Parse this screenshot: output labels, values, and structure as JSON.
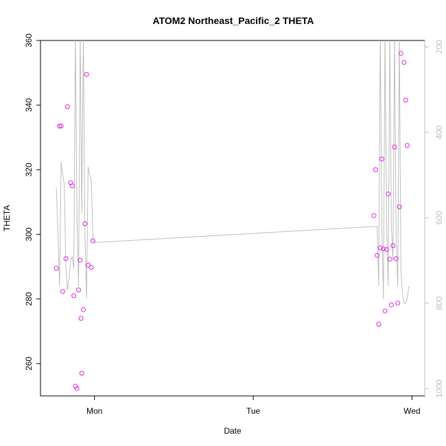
{
  "chart_data": {
    "type": "scatter",
    "title": "ATOM2 Northeast_Pacific_2 THETA",
    "xlabel": "Date",
    "ylabel": "THETA",
    "x_tick_labels": [
      "Mon",
      "Tue",
      "Wed"
    ],
    "x_ticks": [
      1.0,
      2.0,
      3.0
    ],
    "xlim": [
      0.66,
      3.08
    ],
    "ylim": [
      250,
      360
    ],
    "y_ticks": [
      260,
      280,
      300,
      320,
      340,
      360
    ],
    "right_axis": {
      "ylim": [
        1017,
        185
      ],
      "ticks": [
        200,
        400,
        600,
        800,
        1000
      ],
      "color": "#bdbdbd"
    },
    "series": [
      {
        "type": "scatter",
        "color": "#e020e0",
        "points": [
          [
            0.76,
            289.5
          ],
          [
            0.78,
            333.5
          ],
          [
            0.79,
            333.5
          ],
          [
            0.8,
            282.3
          ],
          [
            0.82,
            292.5
          ],
          [
            0.83,
            339.5
          ],
          [
            0.85,
            316.0
          ],
          [
            0.86,
            315.0
          ],
          [
            0.87,
            281.0
          ],
          [
            0.88,
            253.0
          ],
          [
            0.89,
            252.3
          ],
          [
            0.9,
            282.8
          ],
          [
            0.91,
            292.0
          ],
          [
            0.915,
            274.0
          ],
          [
            0.92,
            257.0
          ],
          [
            0.93,
            276.7
          ],
          [
            0.94,
            303.3
          ],
          [
            0.95,
            349.5
          ],
          [
            0.96,
            290.5
          ],
          [
            0.98,
            289.8
          ],
          [
            0.99,
            298.0
          ],
          [
            2.76,
            305.8
          ],
          [
            2.77,
            320.0
          ],
          [
            2.78,
            293.5
          ],
          [
            2.79,
            272.2
          ],
          [
            2.8,
            295.8
          ],
          [
            2.81,
            323.3
          ],
          [
            2.82,
            295.5
          ],
          [
            2.83,
            276.3
          ],
          [
            2.84,
            295.3
          ],
          [
            2.85,
            312.5
          ],
          [
            2.86,
            292.3
          ],
          [
            2.87,
            278.2
          ],
          [
            2.88,
            296.5
          ],
          [
            2.89,
            327.0
          ],
          [
            2.9,
            292.5
          ],
          [
            2.91,
            278.7
          ],
          [
            2.92,
            308.5
          ],
          [
            2.93,
            356.0
          ],
          [
            2.95,
            353.2
          ],
          [
            2.96,
            341.5
          ],
          [
            2.97,
            327.5
          ]
        ]
      },
      {
        "type": "line",
        "axis": "right",
        "color": "#bdbdbd",
        "points": [
          [
            0.76,
            530
          ],
          [
            0.77,
            640
          ],
          [
            0.78,
            760
          ],
          [
            0.79,
            470
          ],
          [
            0.8,
            500
          ],
          [
            0.81,
            520
          ],
          [
            0.82,
            720
          ],
          [
            0.83,
            770
          ],
          [
            0.84,
            740
          ],
          [
            0.85,
            700
          ],
          [
            0.86,
            690
          ],
          [
            0.87,
            720
          ],
          [
            0.88,
            170
          ],
          [
            0.89,
            600
          ],
          [
            0.9,
            760
          ],
          [
            0.91,
            170
          ],
          [
            0.92,
            590
          ],
          [
            0.93,
            170
          ],
          [
            0.94,
            640
          ],
          [
            0.95,
            790
          ],
          [
            0.96,
            480
          ],
          [
            0.97,
            500
          ],
          [
            0.98,
            510
          ],
          [
            0.99,
            650
          ],
          [
            1.0,
            658
          ],
          [
            2.78,
            620
          ],
          [
            2.79,
            760
          ],
          [
            2.8,
            170
          ],
          [
            2.81,
            620
          ],
          [
            2.82,
            790
          ],
          [
            2.83,
            170
          ],
          [
            2.84,
            610
          ],
          [
            2.85,
            760
          ],
          [
            2.86,
            170
          ],
          [
            2.87,
            620
          ],
          [
            2.88,
            700
          ],
          [
            2.89,
            170
          ],
          [
            2.9,
            650
          ],
          [
            2.91,
            760
          ],
          [
            2.92,
            170
          ],
          [
            2.93,
            720
          ],
          [
            2.94,
            780
          ],
          [
            2.95,
            800
          ],
          [
            2.96,
            800
          ],
          [
            2.97,
            788
          ],
          [
            2.98,
            760
          ]
        ]
      }
    ]
  }
}
